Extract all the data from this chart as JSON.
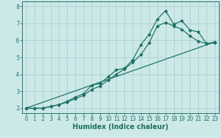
{
  "xlabel": "Humidex (Indice chaleur)",
  "ylabel": "",
  "xlim": [
    -0.5,
    23.5
  ],
  "ylim": [
    1.7,
    8.3
  ],
  "xticks": [
    0,
    1,
    2,
    3,
    4,
    5,
    6,
    7,
    8,
    9,
    10,
    11,
    12,
    13,
    14,
    15,
    16,
    17,
    18,
    19,
    20,
    21,
    22,
    23
  ],
  "yticks": [
    2,
    3,
    4,
    5,
    6,
    7,
    8
  ],
  "background_color": "#cce8e8",
  "grid_color": "#aacfcf",
  "line_color": "#1a7060",
  "line1_x": [
    0,
    1,
    2,
    3,
    4,
    5,
    6,
    7,
    8,
    9,
    10,
    11,
    12,
    13,
    14,
    15,
    16,
    17,
    18,
    19,
    20,
    21,
    22,
    23
  ],
  "line1_y": [
    2.0,
    2.0,
    2.0,
    2.1,
    2.2,
    2.4,
    2.65,
    2.85,
    3.35,
    3.45,
    3.85,
    4.25,
    4.35,
    4.85,
    5.75,
    6.35,
    7.25,
    7.75,
    6.95,
    7.15,
    6.6,
    6.5,
    5.8,
    5.85
  ],
  "line2_x": [
    0,
    1,
    2,
    3,
    4,
    5,
    6,
    7,
    8,
    9,
    10,
    11,
    12,
    13,
    14,
    15,
    16,
    17,
    18,
    19,
    20,
    21,
    22,
    23
  ],
  "line2_y": [
    2.0,
    2.0,
    2.0,
    2.1,
    2.2,
    2.35,
    2.55,
    2.75,
    3.1,
    3.3,
    3.65,
    4.0,
    4.3,
    4.7,
    5.15,
    5.85,
    6.85,
    7.05,
    6.85,
    6.65,
    6.25,
    5.95,
    5.8,
    5.9
  ],
  "line3_x": [
    0,
    23
  ],
  "line3_y": [
    2.0,
    5.9
  ],
  "marker_size": 2.5,
  "linewidth": 0.9,
  "tick_fontsize": 5.5,
  "label_fontsize": 7.0
}
